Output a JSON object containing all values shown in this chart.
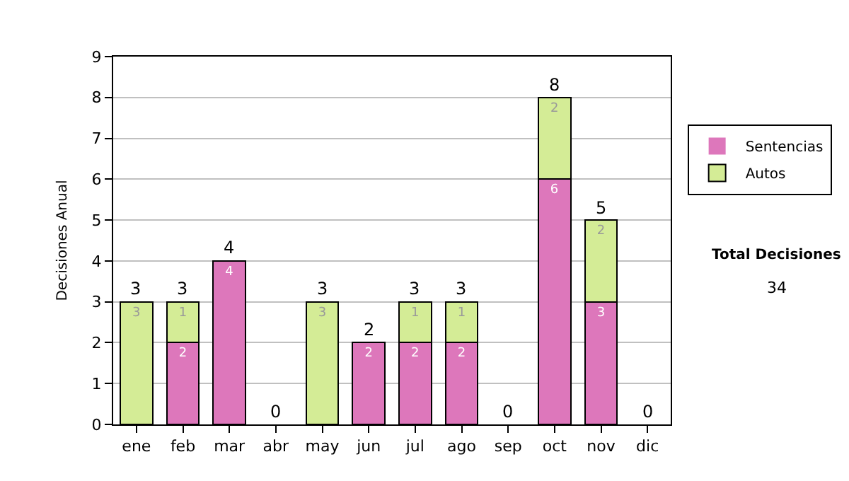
{
  "chart_data": {
    "type": "bar",
    "stacked": true,
    "ylabel": "Decisiones Anual",
    "categories": [
      "ene",
      "feb",
      "mar",
      "abr",
      "may",
      "jun",
      "jul",
      "ago",
      "sep",
      "oct",
      "nov",
      "dic"
    ],
    "series": [
      {
        "name": "Sentencias",
        "color": "#dd77bb",
        "values": [
          0,
          2,
          4,
          0,
          0,
          2,
          2,
          2,
          0,
          6,
          3,
          0
        ],
        "value_labels": [
          null,
          "2",
          "4",
          null,
          null,
          "2",
          "2",
          "2",
          null,
          "6",
          "3",
          null
        ]
      },
      {
        "name": "Autos",
        "color": "#d4ec96",
        "values": [
          3,
          1,
          0,
          0,
          3,
          0,
          1,
          1,
          0,
          2,
          2,
          0
        ],
        "value_labels": [
          "3",
          "1",
          null,
          null,
          "3",
          null,
          "1",
          "1",
          null,
          "2",
          "2",
          null
        ]
      }
    ],
    "totals": [
      "3",
      "3",
      "4",
      "0",
      "3",
      "2",
      "3",
      "3",
      "0",
      "8",
      "5",
      "0"
    ],
    "ylim": [
      0,
      9
    ],
    "yticks": [
      0,
      1,
      2,
      3,
      4,
      5,
      6,
      7,
      8,
      9
    ],
    "grid": "y",
    "legend": "right",
    "annotations": [
      "Total Decisiones",
      "34"
    ]
  }
}
